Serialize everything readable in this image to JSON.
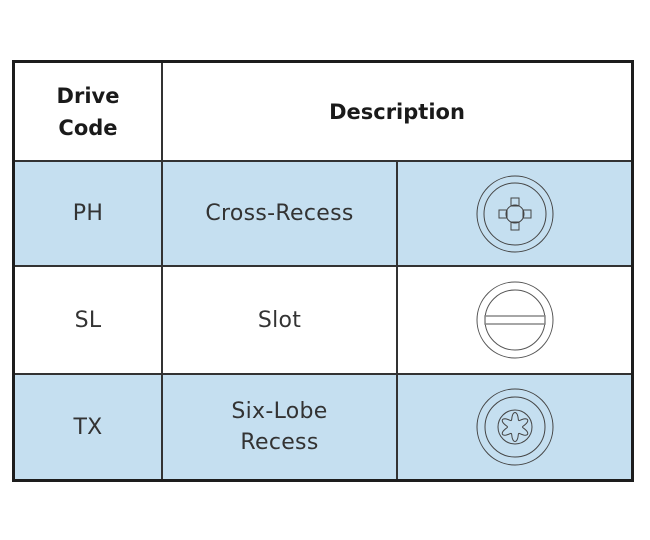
{
  "table": {
    "headers": {
      "drive_code": "Drive\nCode",
      "description": "Description"
    },
    "rows": [
      {
        "code": "PH",
        "description": "Cross-Recess",
        "icon": "phillips-drive-icon",
        "shaded": true
      },
      {
        "code": "SL",
        "description": "Slot",
        "icon": "slotted-drive-icon",
        "shaded": false
      },
      {
        "code": "TX",
        "description": "Six-Lobe\nRecess",
        "icon": "torx-drive-icon",
        "shaded": true
      }
    ],
    "colors": {
      "shade": "#c5dff0",
      "border": "#1d1d1d"
    }
  }
}
